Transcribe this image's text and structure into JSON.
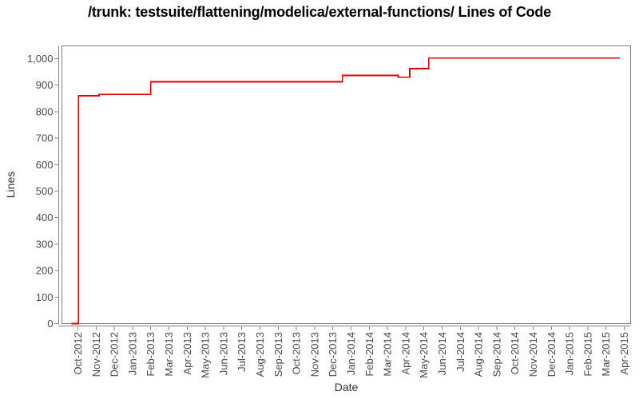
{
  "chart_data": {
    "type": "line",
    "style": "step-after",
    "title": "/trunk: testsuite/flattening/modelica/external-functions/ Lines of Code",
    "xlabel": "Date",
    "ylabel": "Lines",
    "legend_position": "none",
    "grid": false,
    "ylim": [
      0,
      1048
    ],
    "y_tick_interval": 100,
    "y_tick_labels": [
      "0",
      "100",
      "200",
      "300",
      "400",
      "500",
      "600",
      "700",
      "800",
      "900",
      "1,000"
    ],
    "x_tick_labels": [
      "Oct-2012",
      "Nov-2012",
      "Dec-2012",
      "Jan-2013",
      "Feb-2013",
      "Mar-2013",
      "Apr-2013",
      "May-2013",
      "Jun-2013",
      "Jul-2013",
      "Aug-2013",
      "Sep-2013",
      "Oct-2013",
      "Nov-2013",
      "Dec-2013",
      "Jan-2014",
      "Feb-2014",
      "Mar-2014",
      "Apr-2014",
      "May-2014",
      "Jun-2014",
      "Jul-2014",
      "Aug-2014",
      "Sep-2014",
      "Oct-2014",
      "Nov-2014",
      "Dec-2014",
      "Jan-2015",
      "Feb-2015",
      "Mar-2015",
      "Apr-2015"
    ],
    "series": [
      {
        "name": "Lines of Code",
        "color": "#e00000",
        "points": [
          {
            "date": "2012-09-21",
            "value": 0
          },
          {
            "date": "2012-10-02",
            "value": 860
          },
          {
            "date": "2012-11-06",
            "value": 865
          },
          {
            "date": "2013-02-01",
            "value": 913
          },
          {
            "date": "2013-12-17",
            "value": 937
          },
          {
            "date": "2014-03-19",
            "value": 930
          },
          {
            "date": "2014-04-08",
            "value": 962
          },
          {
            "date": "2014-05-09",
            "value": 1002
          },
          {
            "date": "2015-03-24",
            "value": 1002
          }
        ]
      }
    ],
    "colors": {
      "series": "#e00000",
      "plot_border": "#7f7f7f",
      "axis_line": "#7f7f7f",
      "tick_mark": "#7f7f7f",
      "tick_label": "#4a4a4a",
      "axis_title": "#333333",
      "chart_title": "#000000",
      "background": "#ffffff"
    }
  }
}
